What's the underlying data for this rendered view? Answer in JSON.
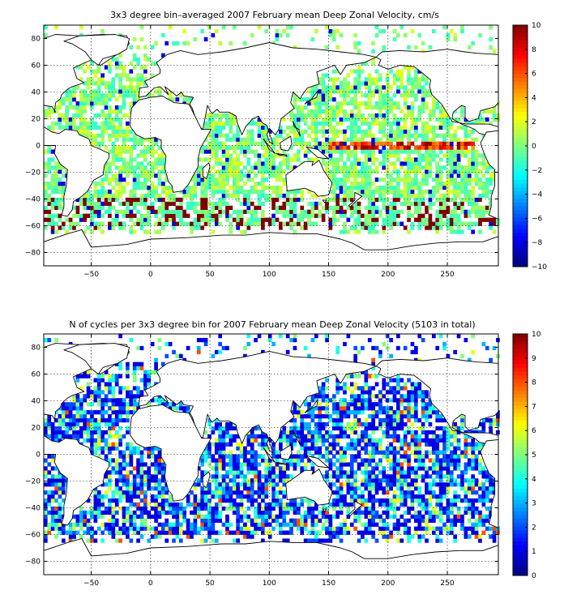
{
  "chart_data": [
    {
      "type": "heatmap",
      "title": "3x3 degree bin–averaged 2007 February mean Deep Zonal Velocity, cm/s",
      "xlim": [
        -90,
        293
      ],
      "ylim": [
        -90,
        90
      ],
      "xticks": [
        -50,
        0,
        50,
        100,
        150,
        200,
        250
      ],
      "yticks": [
        80,
        60,
        40,
        20,
        0,
        -20,
        -40,
        -60,
        -80
      ],
      "xgrid": [
        -50,
        0,
        50,
        100,
        150,
        200,
        250
      ],
      "ygrid": [
        60,
        40,
        20,
        0,
        -20,
        -40,
        -60,
        -80
      ],
      "grid": true,
      "bin_size_deg": 3,
      "colorbar": {
        "min": -10,
        "max": 10,
        "ticks": [
          10,
          8,
          6,
          4,
          2,
          0,
          -2,
          -4,
          -6,
          -8,
          -10
        ],
        "colormap": "jet",
        "placement": "right"
      }
    },
    {
      "type": "heatmap",
      "title": "N of cycles per 3x3 degree bin for 2007 February mean Deep Zonal Velocity (5103 in total)",
      "xlim": [
        -90,
        293
      ],
      "ylim": [
        -90,
        90
      ],
      "xticks": [
        -50,
        0,
        50,
        100,
        150,
        200,
        250
      ],
      "yticks": [
        80,
        60,
        40,
        20,
        0,
        -20,
        -40,
        -60,
        -80
      ],
      "xgrid": [
        -50,
        0,
        50,
        100,
        150,
        200,
        250
      ],
      "ygrid": [
        60,
        40,
        20,
        0,
        -20,
        -40,
        -60,
        -80
      ],
      "grid": true,
      "bin_size_deg": 3,
      "colorbar": {
        "min": 0,
        "max": 10,
        "ticks": [
          10,
          9,
          8,
          7,
          6,
          5,
          4,
          3,
          2,
          1,
          0
        ],
        "colormap": "jet",
        "placement": "right"
      }
    }
  ],
  "colors": {
    "axes": "#000000",
    "background": "#ffffff",
    "land": "#ffffff"
  }
}
